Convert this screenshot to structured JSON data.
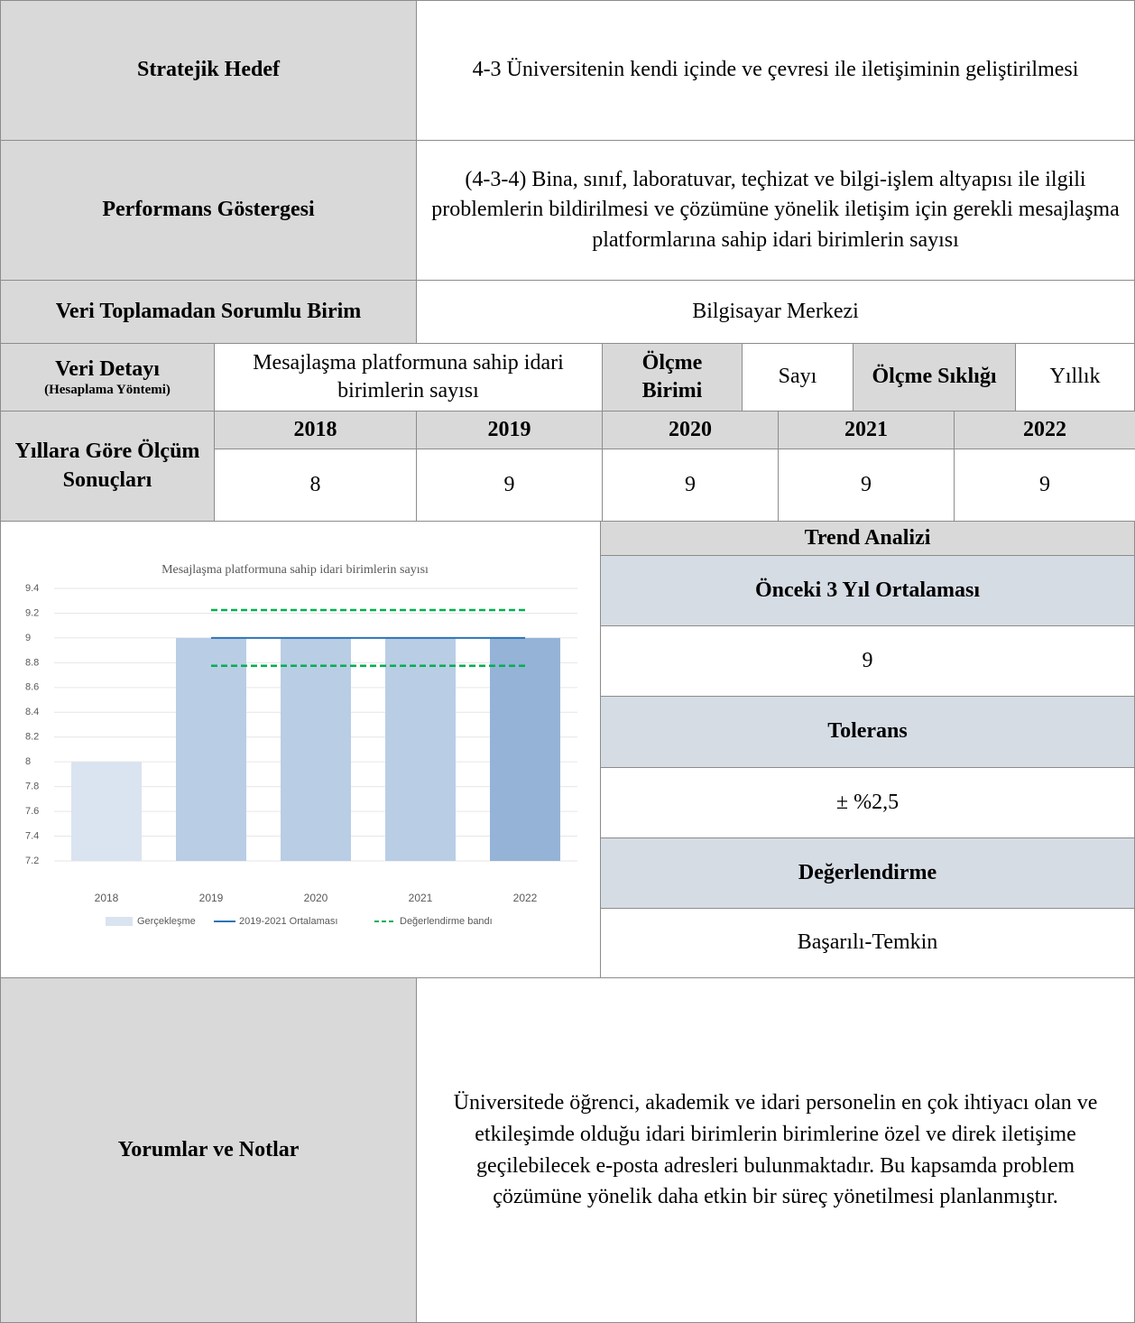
{
  "strategic_goal": {
    "label": "Stratejik Hedef",
    "value": "4-3 Üniversitenin kendi içinde ve çevresi ile iletişiminin geliştirilmesi"
  },
  "indicator": {
    "label": "Performans Göstergesi",
    "value": "(4-3-4) Bina, sınıf, laboratuvar, teçhizat ve bilgi-işlem altyapısı ile ilgili problemlerin bildirilmesi ve çözümüne yönelik iletişim için gerekli mesajlaşma platformlarına sahip idari birimlerin sayısı"
  },
  "responsible_unit": {
    "label": "Veri Toplamadan Sorumlu Birim",
    "value": "Bilgisayar Merkezi"
  },
  "data_detail": {
    "label": "Veri Detayı",
    "sublabel": "(Hesaplama Yöntemi)",
    "value": "Mesajlaşma platformuna sahip idari birimlerin sayısı",
    "unit_label": "Ölçme Birimi",
    "unit": "Sayı",
    "frequency_label": "Ölçme Sıklığı",
    "frequency": "Yıllık"
  },
  "results": {
    "label": "Yıllara Göre Ölçüm Sonuçları",
    "years": [
      "2018",
      "2019",
      "2020",
      "2021",
      "2022"
    ],
    "values": [
      8,
      9,
      9,
      9,
      9
    ]
  },
  "chart_data": {
    "type": "bar",
    "title": "Mesajlaşma platformuna sahip idari birimlerin sayısı",
    "categories": [
      "2018",
      "2019",
      "2020",
      "2021",
      "2022"
    ],
    "ylim": [
      7.2,
      9.4
    ],
    "yticks": [
      7.2,
      7.4,
      7.6,
      7.8,
      8,
      8.2,
      8.4,
      8.6,
      8.8,
      9,
      9.2,
      9.4
    ],
    "grid": true,
    "series": [
      {
        "name": "Gerçekleşme",
        "color": "#dae3f0",
        "colors": [
          "#dae3f0",
          "#b9cde5",
          "#b9cde5",
          "#b9cde5",
          "#95b3d7"
        ],
        "values": [
          8,
          9,
          9,
          9,
          9
        ]
      },
      {
        "name": "2019-2021 Ortalaması",
        "type": "line",
        "color": "#2e75b6",
        "values": [
          null,
          9,
          9,
          9,
          9
        ]
      },
      {
        "name": "Değerlendirme bandı",
        "type": "band",
        "color": "#00b050",
        "upper": [
          null,
          9.225,
          9.225,
          9.225,
          9.225
        ],
        "lower": [
          null,
          8.775,
          8.775,
          8.775,
          8.775
        ]
      }
    ]
  },
  "trend": {
    "title": "Trend Analizi",
    "avg_label": "Önceki 3 Yıl Ortalaması",
    "avg_value": 9,
    "tolerance_label": "Tolerans",
    "tolerance": "± %2,5",
    "evaluation_label": "Değerlendirme",
    "evaluation": "Başarılı-Temkin"
  },
  "notes": {
    "label": "Yorumlar ve Notlar",
    "value": "Üniversitede öğrenci, akademik ve idari personelin en çok ihtiyacı olan ve etkileşimde olduğu idari birimlerin birimlerine özel ve direk iletişime geçilebilecek e-posta adresleri bulunmaktadır. Bu kapsamda problem çözümüne yönelik daha etkin bir süreç yönetilmesi planlanmıştır."
  }
}
